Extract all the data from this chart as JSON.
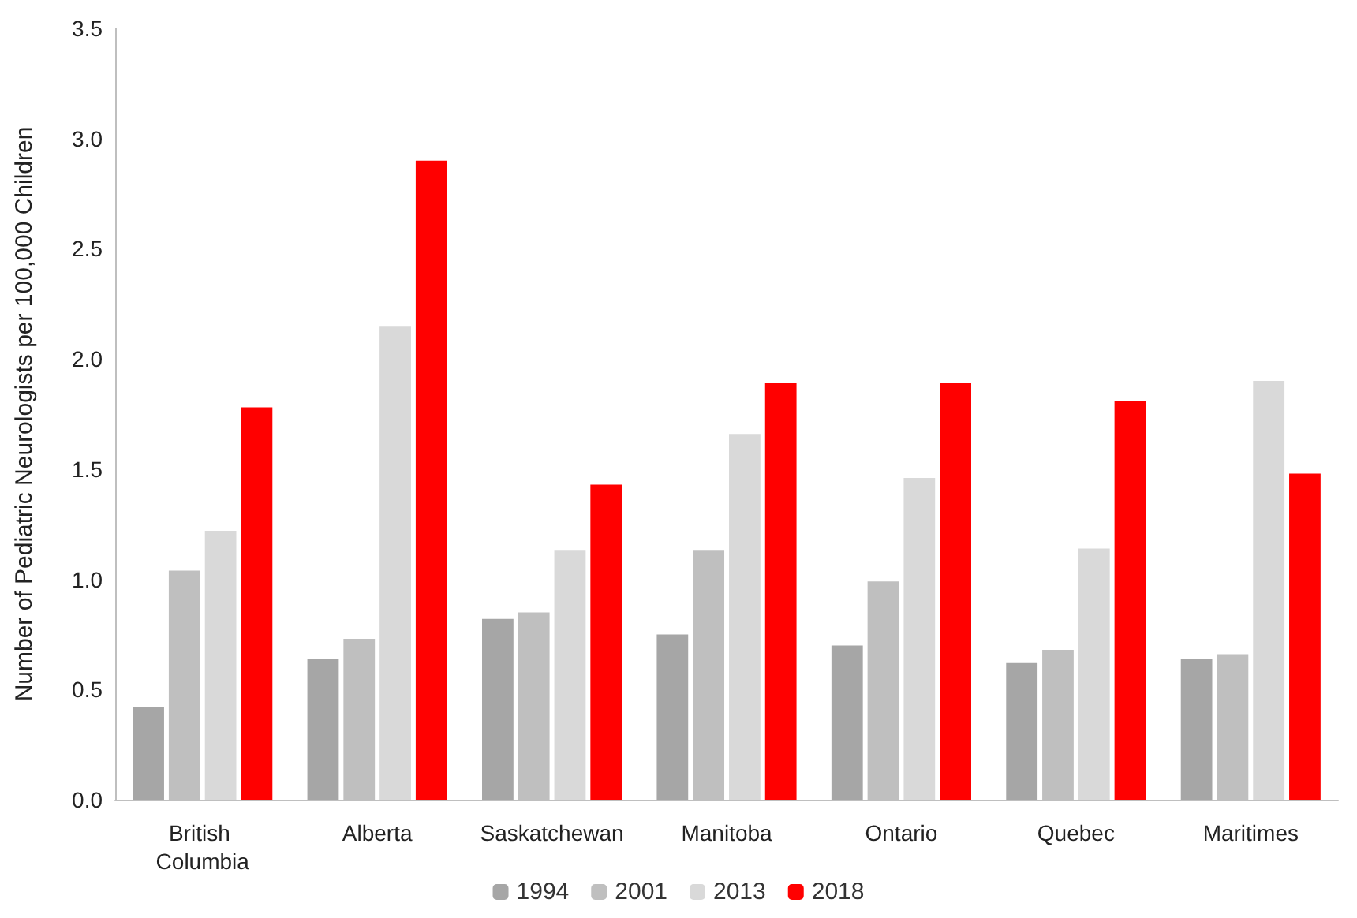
{
  "chart_data": {
    "type": "bar",
    "ylabel": "Number of Pediatric Neurologists per 100,000 Children",
    "categories": [
      "British Columbia",
      "Alberta",
      "Saskatchewan",
      "Manitoba",
      "Ontario",
      "Quebec",
      "Maritimes"
    ],
    "series": [
      {
        "name": "1994",
        "color": "#a6a6a6",
        "values": [
          0.42,
          0.64,
          0.82,
          0.75,
          0.7,
          0.62,
          0.64
        ]
      },
      {
        "name": "2001",
        "color": "#bfbfbf",
        "values": [
          1.04,
          0.73,
          0.85,
          1.13,
          0.99,
          0.68,
          0.66
        ]
      },
      {
        "name": "2013",
        "color": "#d9d9d9",
        "values": [
          1.22,
          2.15,
          1.13,
          1.66,
          1.46,
          1.14,
          1.9
        ]
      },
      {
        "name": "2018",
        "color": "#ff0000",
        "values": [
          1.78,
          2.9,
          1.43,
          1.89,
          1.89,
          1.81,
          1.48
        ]
      }
    ],
    "ylim": [
      0,
      3.5
    ],
    "yticks": [
      {
        "value": 0,
        "label": "0.0"
      },
      0.5,
      {
        "value": 1,
        "label": "1.0"
      },
      1.5,
      {
        "value": 2,
        "label": "2.0"
      },
      2.5,
      {
        "value": 3,
        "label": "3.0"
      },
      3.5
    ],
    "grid": false,
    "legend": "bottom"
  }
}
